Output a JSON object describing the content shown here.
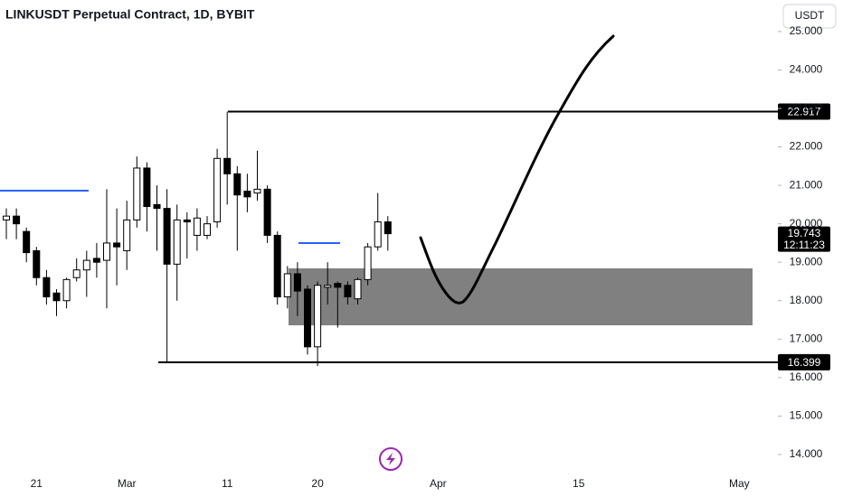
{
  "chart_data": {
    "type": "candlestick",
    "title": "LINKUSDT Perpetual Contract, 1D, BYBIT",
    "currency": "USDT",
    "categories": [
      null,
      null,
      null,
      "21",
      null,
      null,
      null,
      null,
      null,
      null,
      null,
      null,
      "Mar",
      null,
      null,
      null,
      null,
      null,
      null,
      null,
      null,
      null,
      "11",
      null,
      null,
      null,
      null,
      null,
      null,
      null,
      null,
      "20",
      null,
      null,
      null,
      null,
      null,
      null,
      null,
      null,
      null,
      null,
      null,
      "Apr",
      null,
      null,
      null,
      null,
      null,
      null,
      null,
      null,
      null,
      null,
      null,
      null,
      null,
      "15",
      null,
      null,
      null,
      null,
      null,
      null,
      null,
      null,
      null,
      null,
      null,
      null,
      null,
      null,
      null,
      "May",
      null,
      null,
      null
    ],
    "open": [
      20.1,
      20.2,
      19.8,
      19.3,
      18.6,
      18.2,
      18.0,
      18.6,
      18.8,
      19.1,
      19.05,
      19.5,
      19.3,
      20.1,
      21.45,
      20.5,
      20.4,
      18.95,
      20.1,
      19.7,
      19.7,
      20.05,
      21.7,
      21.3,
      20.85,
      20.8,
      20.9,
      19.7,
      18.1,
      18.7,
      18.3,
      16.8,
      18.35,
      18.45,
      18.4,
      18.05,
      18.55,
      19.4,
      20.05,
      null,
      null,
      null,
      null,
      null,
      null,
      null,
      null,
      null,
      null,
      null,
      null,
      null,
      null,
      null,
      null,
      null,
      null,
      null,
      null,
      null,
      null,
      null,
      null,
      null,
      null,
      null,
      null,
      null,
      null,
      null,
      null,
      null,
      null,
      null,
      null,
      null,
      null
    ],
    "high": [
      20.4,
      20.4,
      19.9,
      19.4,
      18.8,
      18.3,
      18.6,
      19.1,
      19.3,
      19.5,
      20.9,
      20.4,
      20.6,
      21.75,
      21.6,
      21.0,
      20.9,
      20.5,
      20.3,
      20.4,
      20.2,
      21.95,
      22.917,
      21.5,
      21.3,
      21.9,
      21.0,
      19.8,
      18.9,
      19.0,
      18.4,
      18.5,
      19.0,
      18.5,
      18.5,
      18.6,
      19.5,
      20.8,
      20.2,
      null,
      null,
      null,
      null,
      null,
      null,
      null,
      null,
      null,
      null,
      null,
      null,
      null,
      null,
      null,
      null,
      null,
      null,
      null,
      null,
      null,
      null,
      null,
      null,
      null,
      null,
      null,
      null,
      null,
      null,
      null,
      null,
      null,
      null,
      null,
      null,
      null,
      null
    ],
    "low": [
      19.6,
      19.6,
      19.0,
      18.4,
      17.9,
      17.6,
      17.8,
      18.5,
      18.1,
      18.6,
      17.8,
      18.4,
      18.8,
      19.9,
      19.8,
      19.3,
      16.399,
      18.0,
      19.1,
      19.3,
      19.6,
      19.9,
      20.5,
      19.3,
      20.3,
      20.6,
      19.5,
      17.9,
      17.8,
      17.6,
      16.6,
      16.3,
      17.9,
      17.3,
      17.9,
      17.9,
      18.4,
      19.3,
      19.3,
      null,
      null,
      null,
      null,
      null,
      null,
      null,
      null,
      null,
      null,
      null,
      null,
      null,
      null,
      null,
      null,
      null,
      null,
      null,
      null,
      null,
      null,
      null,
      null,
      null,
      null,
      null,
      null,
      null,
      null,
      null,
      null,
      null,
      null,
      null,
      null,
      null,
      null
    ],
    "close": [
      20.2,
      20.0,
      19.25,
      18.6,
      18.1,
      18.0,
      18.55,
      18.8,
      19.05,
      19.0,
      19.5,
      19.4,
      20.1,
      21.45,
      20.45,
      20.4,
      18.95,
      20.1,
      20.05,
      20.15,
      20.0,
      21.7,
      21.3,
      20.75,
      20.7,
      20.9,
      19.7,
      18.1,
      18.7,
      18.25,
      16.8,
      18.4,
      18.4,
      18.35,
      18.1,
      18.55,
      19.4,
      20.05,
      19.743,
      null,
      null,
      null,
      null,
      null,
      null,
      null,
      null,
      null,
      null,
      null,
      null,
      null,
      null,
      null,
      null,
      null,
      null,
      null,
      null,
      null,
      null,
      null,
      null,
      null,
      null,
      null,
      null,
      null,
      null,
      null,
      null,
      null,
      null,
      null,
      null,
      null,
      null
    ],
    "up_color": "#ffffff",
    "down_color": "#000000",
    "ylim": [
      13.6,
      25.82
    ],
    "yticks": [
      {
        "value": 14,
        "label": "14.000"
      },
      {
        "value": 15,
        "label": "15.000"
      },
      {
        "value": 16,
        "label": "16.000"
      },
      {
        "value": 17,
        "label": "17.000"
      },
      {
        "value": 18,
        "label": "18.000"
      },
      {
        "value": 19,
        "label": "19.000"
      },
      {
        "value": 20,
        "label": "20.000"
      },
      {
        "value": 21,
        "label": "21.000"
      },
      {
        "value": 22,
        "label": "22.000"
      },
      {
        "value": 23,
        "label": "23.000"
      },
      {
        "value": 24,
        "label": "24.000"
      },
      {
        "value": 25,
        "label": "25.000"
      }
    ],
    "price_lines": [
      22.917,
      16.399
    ],
    "last_price": 19.743,
    "countdown": "12:11:23",
    "grid": false
  }
}
